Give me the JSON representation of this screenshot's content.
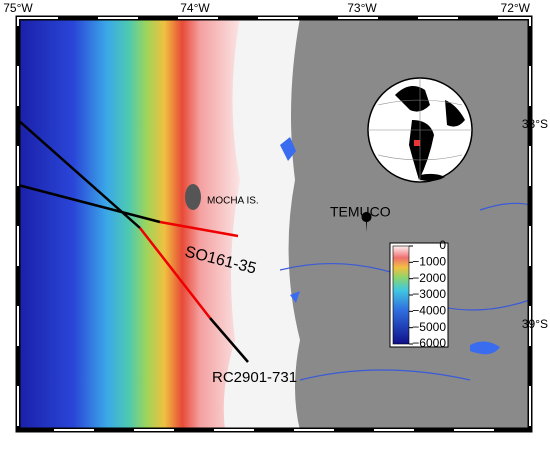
{
  "map": {
    "lon_labels": [
      "75°W",
      "74°W",
      "73°W",
      "72°W"
    ],
    "lat_labels": [
      "38°S",
      "39°S"
    ],
    "places": [
      "MOCHA IS.",
      "TEMUCO"
    ],
    "cores": [
      "SO161-35",
      "RC2901-731"
    ],
    "colorbar": {
      "lim": [
        -6000,
        0
      ],
      "ticks": [
        0,
        {
          "value": -1000,
          "label": "−1000"
        },
        {
          "value": -2000,
          "label": "−2000"
        },
        {
          "value": -3000,
          "label": "−3000"
        },
        {
          "value": -4000,
          "label": "−4000"
        },
        {
          "value": -5000,
          "label": "−5000"
        },
        {
          "value": -6000,
          "label": "−6000"
        }
      ]
    }
  }
}
